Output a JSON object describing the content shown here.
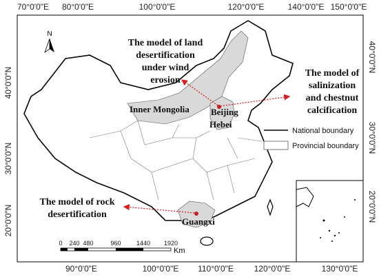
{
  "top_axis_labels": [
    "70°0'0\"E",
    "80°0'0\"E",
    "100°0'0\"E",
    "120°0'0\"E",
    "140°0'0\"E",
    "150°0'0\"E"
  ],
  "bottom_axis_labels": [
    "90°0'0\"E",
    "100°0'0\"E",
    "110°0'0\"E",
    "120°0'0\"E",
    "130°0'0\"E"
  ],
  "left_axis_labels": [
    "40°0'0\"N",
    "30°0'0\"N",
    "20°0'0\"N"
  ],
  "right_axis_labels": [
    "40°0'0\"N",
    "30°0'0\"N",
    "20°0'0\"N"
  ],
  "north_arrow": "N",
  "annotations": [
    {
      "lines": [
        "The model of land",
        "desertification",
        "under wind",
        "erosion"
      ]
    },
    {
      "lines": [
        "The model of",
        "salinization",
        "and chestnut",
        "calcification"
      ]
    },
    {
      "lines": [
        "The model of rock",
        "desertification"
      ]
    }
  ],
  "regions": [
    "Inner Mongolia",
    "Beijing",
    "Hebei",
    "Guangxi"
  ],
  "legend": [
    "National boundary",
    "Provincial boundary"
  ],
  "scale_bar": {
    "labels": [
      "0",
      "240",
      "480",
      "960",
      "1440",
      "1920"
    ],
    "unit": "Km"
  }
}
